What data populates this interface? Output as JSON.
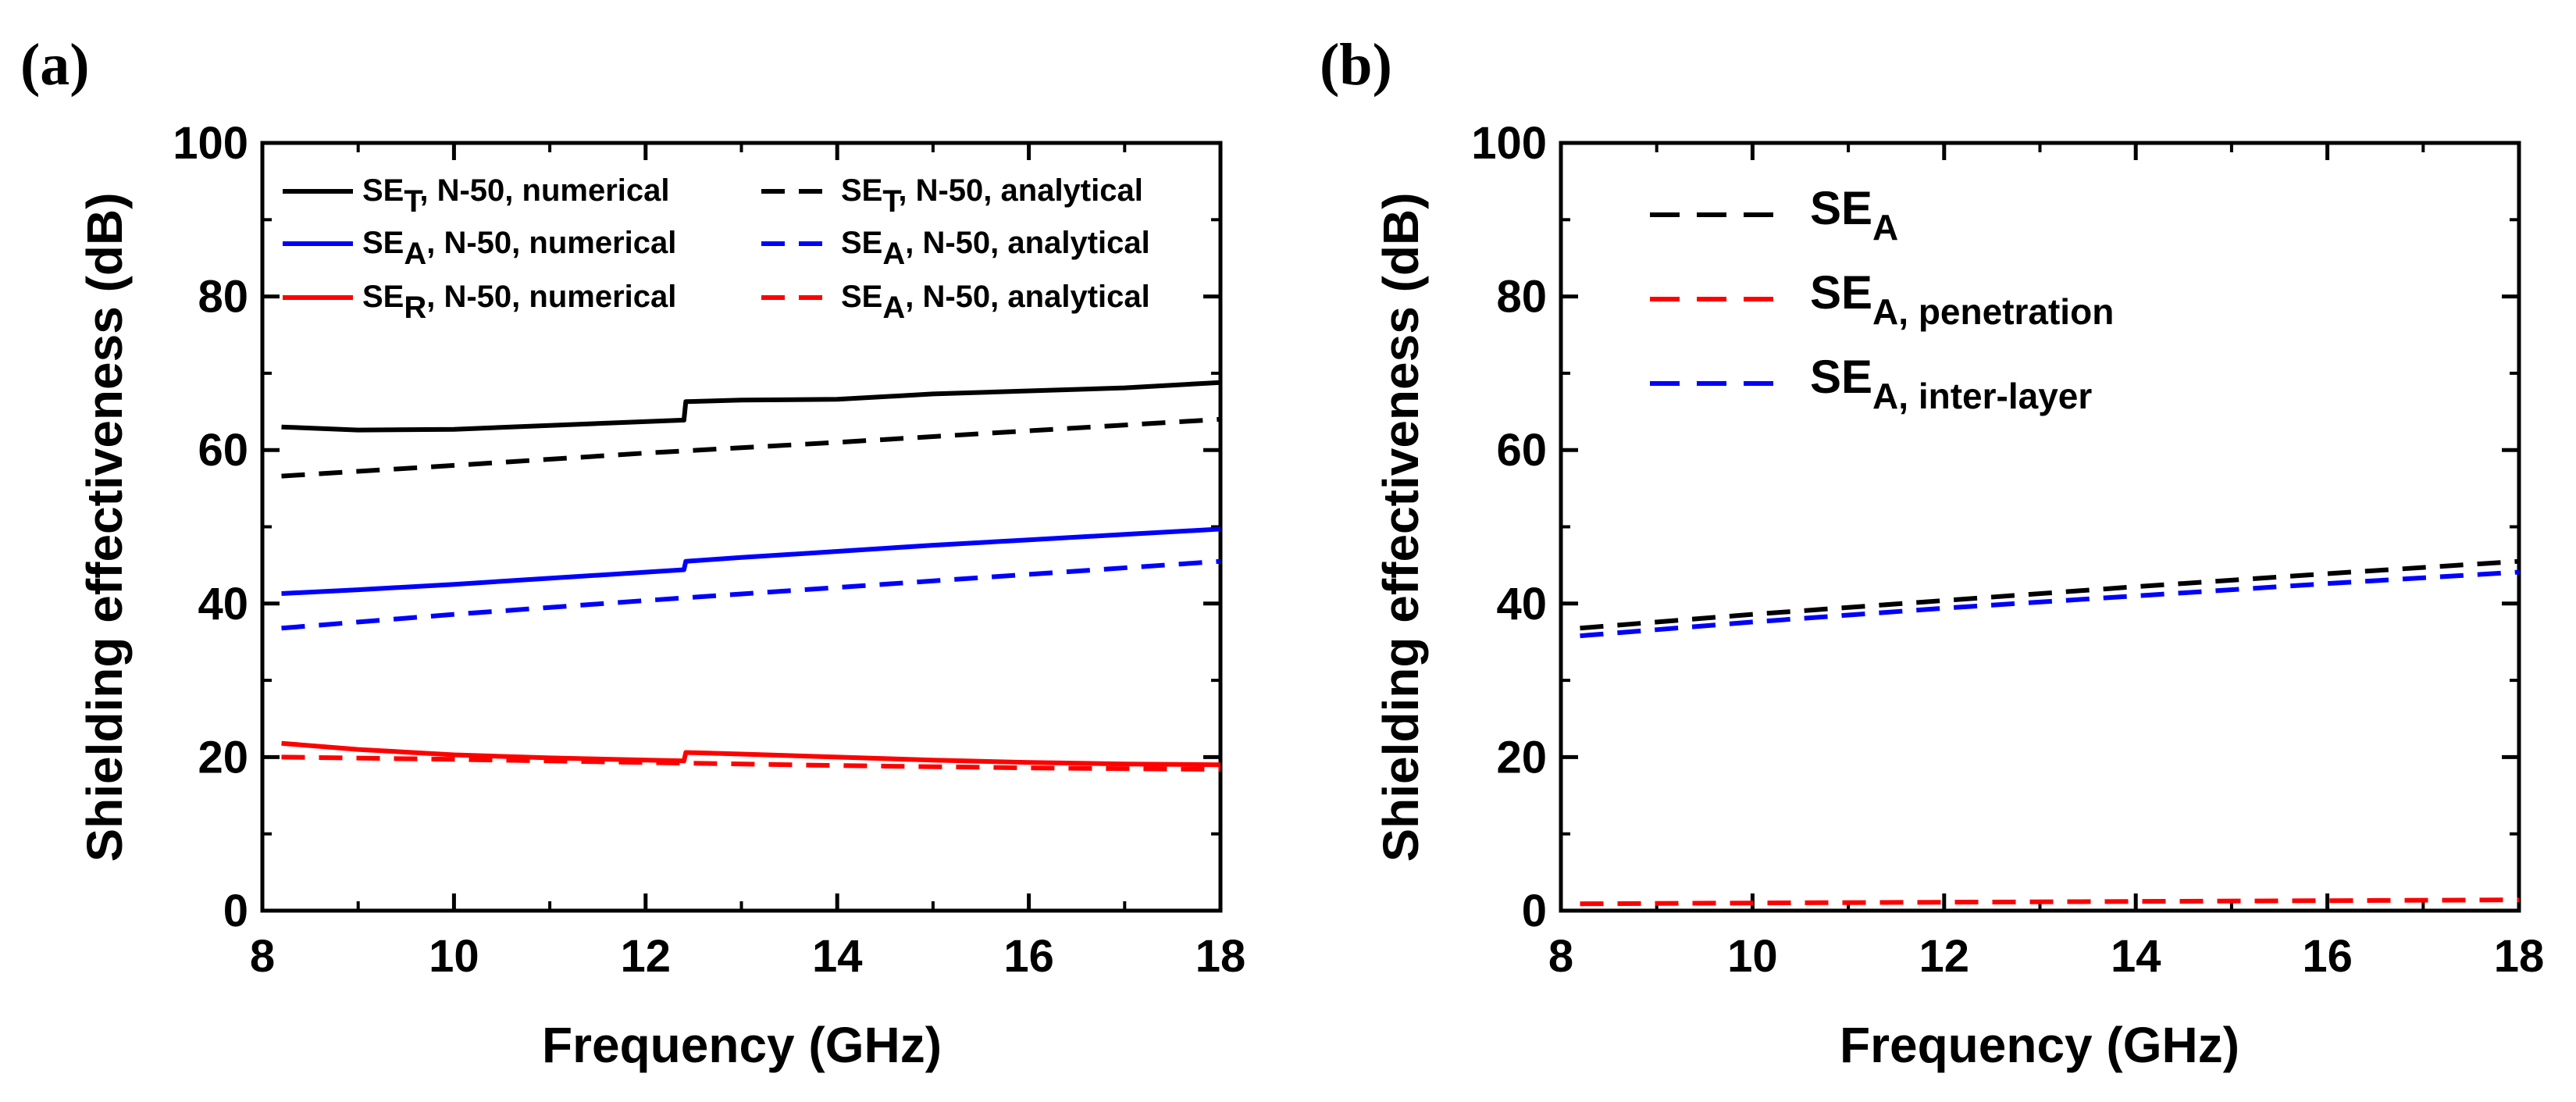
{
  "chart_data": [
    {
      "panel_label": "(a)",
      "type": "line",
      "xlabel": "Frequency (GHz)",
      "ylabel": "Shielding effectiveness (dB)",
      "xlim": [
        8,
        18
      ],
      "ylim": [
        0,
        100
      ],
      "xticks": [
        "8",
        "10",
        "12",
        "14",
        "16",
        "18"
      ],
      "yticks": [
        "0",
        "20",
        "40",
        "60",
        "80",
        "100"
      ],
      "legend_placement": "top",
      "series": [
        {
          "name_main": "SE",
          "name_sub": "T",
          "name_rest": ", N-50, numerical",
          "color": "#000000",
          "style": "solid",
          "x": [
            8.2,
            9.0,
            10.0,
            11.0,
            12.4,
            12.42,
            13.0,
            14.0,
            15.0,
            16.0,
            17.0,
            18.0
          ],
          "y": [
            63.0,
            62.6,
            62.7,
            63.2,
            63.9,
            66.3,
            66.5,
            66.6,
            67.3,
            67.7,
            68.1,
            68.8
          ]
        },
        {
          "name_main": "SE",
          "name_sub": "A",
          "name_rest": ", N-50, numerical",
          "color": "#0000ff",
          "style": "solid",
          "x": [
            8.2,
            9.0,
            10.0,
            11.0,
            12.4,
            12.42,
            13.0,
            14.0,
            15.0,
            16.0,
            17.0,
            18.0
          ],
          "y": [
            41.3,
            41.8,
            42.5,
            43.3,
            44.4,
            45.5,
            46.0,
            46.8,
            47.6,
            48.3,
            49.0,
            49.7
          ]
        },
        {
          "name_main": "SE",
          "name_sub": "R",
          "name_rest": ", N-50, numerical",
          "color": "#ff0000",
          "style": "solid",
          "x": [
            8.2,
            9.0,
            10.0,
            11.0,
            12.4,
            12.42,
            13.0,
            14.0,
            15.0,
            16.0,
            17.0,
            18.0
          ],
          "y": [
            21.8,
            21.0,
            20.3,
            19.9,
            19.5,
            20.6,
            20.4,
            20.0,
            19.6,
            19.3,
            19.1,
            19.0
          ]
        },
        {
          "name_main": "SE",
          "name_sub": "T",
          "name_rest": ", N-50, analytical",
          "color": "#000000",
          "style": "dashed",
          "x": [
            8.2,
            10.0,
            12.0,
            14.0,
            16.0,
            18.0
          ],
          "y": [
            56.6,
            58.0,
            59.6,
            61.0,
            62.5,
            64.0
          ]
        },
        {
          "name_main": "SE",
          "name_sub": "A",
          "name_rest": ", N-50, analytical",
          "color": "#0000ff",
          "style": "dashed",
          "x": [
            8.2,
            10.0,
            12.0,
            14.0,
            16.0,
            18.0
          ],
          "y": [
            36.8,
            38.6,
            40.4,
            42.1,
            43.8,
            45.5
          ]
        },
        {
          "name_main": "SE",
          "name_sub": "A",
          "name_rest": ", N-50, analytical",
          "color": "#ff0000",
          "style": "dashed",
          "x": [
            8.2,
            10.0,
            12.0,
            14.0,
            16.0,
            18.0
          ],
          "y": [
            20.0,
            19.7,
            19.3,
            18.9,
            18.6,
            18.4
          ]
        }
      ]
    },
    {
      "panel_label": "(b)",
      "type": "line",
      "xlabel": "Frequency (GHz)",
      "ylabel": "Shielding effectiveness (dB)",
      "xlim": [
        8,
        18
      ],
      "ylim": [
        0,
        100
      ],
      "xticks": [
        "8",
        "10",
        "12",
        "14",
        "16",
        "18"
      ],
      "yticks": [
        "0",
        "20",
        "40",
        "60",
        "80",
        "100"
      ],
      "legend_placement": "top-left",
      "series": [
        {
          "name_main": "SE",
          "name_sub": "A",
          "color": "#000000",
          "style": "dashed",
          "x": [
            8.2,
            10.0,
            12.0,
            14.0,
            16.0,
            18.0
          ],
          "y": [
            36.8,
            38.6,
            40.4,
            42.2,
            43.9,
            45.5
          ]
        },
        {
          "name_main": "SE",
          "name_sub": "A, penetration",
          "color": "#ff0000",
          "style": "dashed",
          "x": [
            8.2,
            10.0,
            12.0,
            14.0,
            16.0,
            18.0
          ],
          "y": [
            0.9,
            1.0,
            1.1,
            1.2,
            1.3,
            1.4
          ]
        },
        {
          "name_main": "SE",
          "name_sub": "A, inter-layer",
          "color": "#0000ff",
          "style": "dashed",
          "x": [
            8.2,
            10.0,
            12.0,
            14.0,
            16.0,
            18.0
          ],
          "y": [
            35.8,
            37.6,
            39.4,
            41.0,
            42.6,
            44.1
          ]
        }
      ]
    }
  ]
}
